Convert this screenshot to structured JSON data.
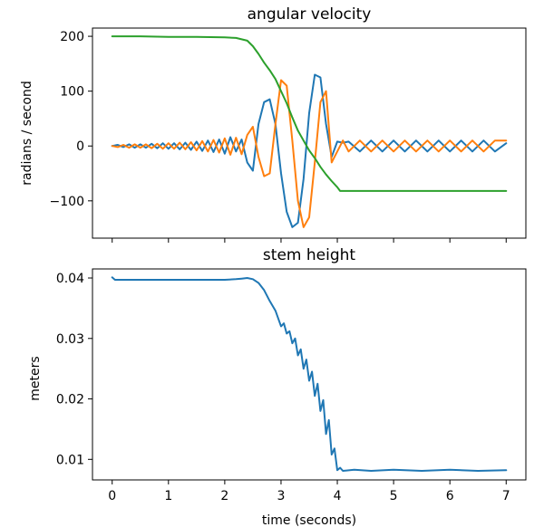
{
  "chart_data": [
    {
      "type": "line",
      "title": "angular velocity",
      "xlabel": "",
      "ylabel": "radians / second",
      "xlim": [
        -0.35,
        7.35
      ],
      "ylim": [
        -168,
        215
      ],
      "xticks": [
        0,
        1,
        2,
        3,
        4,
        5,
        6,
        7
      ],
      "show_xtick_labels": false,
      "yticks": [
        -100,
        0,
        100,
        200
      ],
      "ytick_labels": [
        "−100",
        "0",
        "100",
        "200"
      ],
      "grid": false,
      "legend": "none",
      "series": [
        {
          "color": "#1f77b4",
          "x": [
            0,
            0.1,
            0.2,
            0.3,
            0.4,
            0.5,
            0.6,
            0.7,
            0.8,
            0.9,
            1.0,
            1.1,
            1.2,
            1.3,
            1.4,
            1.5,
            1.6,
            1.7,
            1.8,
            1.9,
            2.0,
            2.1,
            2.2,
            2.3,
            2.4,
            2.5,
            2.6,
            2.7,
            2.8,
            2.9,
            3.0,
            3.1,
            3.2,
            3.3,
            3.4,
            3.5,
            3.6,
            3.7,
            3.8,
            3.9,
            4.0,
            4.1,
            4.2,
            4.4,
            4.6,
            4.8,
            5.0,
            5.2,
            5.4,
            5.6,
            5.8,
            6.0,
            6.2,
            6.4,
            6.6,
            6.8,
            7.0
          ],
          "y": [
            0,
            2,
            -2,
            3,
            -3,
            3,
            -3,
            4,
            -4,
            5,
            -5,
            5,
            -6,
            6,
            -7,
            8,
            -9,
            10,
            -11,
            12,
            -14,
            16,
            -10,
            12,
            -30,
            -45,
            40,
            80,
            85,
            40,
            -50,
            -120,
            -148,
            -140,
            -60,
            60,
            130,
            125,
            40,
            -20,
            8,
            6,
            8,
            -10,
            10,
            -10,
            10,
            -10,
            10,
            -10,
            10,
            -10,
            10,
            -10,
            10,
            -10,
            5
          ]
        },
        {
          "color": "#ff7f0e",
          "x": [
            0,
            0.1,
            0.2,
            0.3,
            0.4,
            0.5,
            0.6,
            0.7,
            0.8,
            0.9,
            1.0,
            1.1,
            1.2,
            1.3,
            1.4,
            1.5,
            1.6,
            1.7,
            1.8,
            1.9,
            2.0,
            2.1,
            2.2,
            2.3,
            2.4,
            2.5,
            2.6,
            2.7,
            2.8,
            2.9,
            3.0,
            3.1,
            3.2,
            3.3,
            3.4,
            3.5,
            3.6,
            3.7,
            3.8,
            3.9,
            4.0,
            4.1,
            4.2,
            4.4,
            4.6,
            4.8,
            5.0,
            5.2,
            5.4,
            5.6,
            5.8,
            6.0,
            6.2,
            6.4,
            6.6,
            6.8,
            7.0
          ],
          "y": [
            0,
            -2,
            2,
            -3,
            3,
            -3,
            3,
            -4,
            4,
            -5,
            5,
            -5,
            6,
            -6,
            7,
            -8,
            9,
            -10,
            11,
            -12,
            14,
            -16,
            15,
            -15,
            20,
            35,
            -20,
            -55,
            -50,
            40,
            120,
            110,
            10,
            -100,
            -148,
            -130,
            -30,
            80,
            100,
            -30,
            -10,
            10,
            -10,
            10,
            -10,
            10,
            -10,
            10,
            -10,
            10,
            -10,
            10,
            -10,
            10,
            -10,
            10,
            10
          ]
        },
        {
          "color": "#2ca02c",
          "x": [
            0,
            0.5,
            1.0,
            1.5,
            2.0,
            2.2,
            2.4,
            2.5,
            2.6,
            2.7,
            2.8,
            2.9,
            3.0,
            3.1,
            3.2,
            3.3,
            3.4,
            3.5,
            3.6,
            3.7,
            3.8,
            3.9,
            4.0,
            4.05,
            4.1,
            4.5,
            5.0,
            6.0,
            7.0
          ],
          "y": [
            200,
            200,
            199,
            199,
            198,
            197,
            192,
            182,
            168,
            152,
            138,
            122,
            100,
            78,
            52,
            28,
            10,
            -8,
            -22,
            -38,
            -52,
            -64,
            -75,
            -82,
            -82,
            -82,
            -82,
            -82,
            -82
          ]
        }
      ]
    },
    {
      "type": "line",
      "title": "stem height",
      "xlabel": "time (seconds)",
      "ylabel": "meters",
      "xlim": [
        -0.35,
        7.35
      ],
      "ylim": [
        0.0066,
        0.0415
      ],
      "xticks": [
        0,
        1,
        2,
        3,
        4,
        5,
        6,
        7
      ],
      "show_xtick_labels": true,
      "yticks": [
        0.01,
        0.02,
        0.03,
        0.04
      ],
      "ytick_labels": [
        "0.01",
        "0.02",
        "0.03",
        "0.04"
      ],
      "grid": false,
      "legend": "none",
      "series": [
        {
          "color": "#1f77b4",
          "x": [
            0,
            0.05,
            0.2,
            0.5,
            1.0,
            1.5,
            2.0,
            2.2,
            2.3,
            2.4,
            2.5,
            2.6,
            2.7,
            2.8,
            2.9,
            3.0,
            3.05,
            3.1,
            3.15,
            3.2,
            3.25,
            3.3,
            3.35,
            3.4,
            3.45,
            3.5,
            3.55,
            3.6,
            3.65,
            3.7,
            3.75,
            3.8,
            3.85,
            3.9,
            3.95,
            4.0,
            4.05,
            4.1,
            4.3,
            4.6,
            5.0,
            5.5,
            6.0,
            6.5,
            7.0
          ],
          "y": [
            0.0401,
            0.0397,
            0.0397,
            0.0397,
            0.0397,
            0.0397,
            0.0397,
            0.0398,
            0.0399,
            0.04,
            0.0398,
            0.0392,
            0.038,
            0.0362,
            0.0346,
            0.032,
            0.0325,
            0.0308,
            0.0312,
            0.0292,
            0.03,
            0.0272,
            0.0282,
            0.025,
            0.0265,
            0.023,
            0.0245,
            0.0205,
            0.0225,
            0.018,
            0.0198,
            0.0142,
            0.0165,
            0.0108,
            0.0118,
            0.0082,
            0.0086,
            0.0081,
            0.0083,
            0.0081,
            0.0083,
            0.0081,
            0.0083,
            0.0081,
            0.0082
          ]
        }
      ]
    }
  ]
}
